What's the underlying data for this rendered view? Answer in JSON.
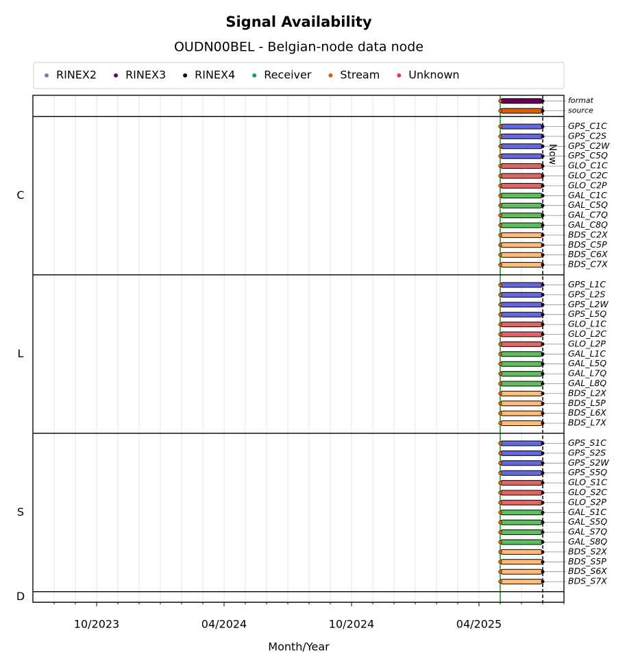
{
  "chart_data": {
    "type": "timeline",
    "title": "Signal Availability",
    "subtitle": "OUDN00BEL - Belgian-node data node",
    "xlabel": "Month/Year",
    "legend": [
      {
        "name": "RINEX2",
        "color": "#7777bb"
      },
      {
        "name": "RINEX3",
        "color": "#660066"
      },
      {
        "name": "RINEX4",
        "color": "#1a0010"
      },
      {
        "name": "Receiver",
        "color": "#1b9e77"
      },
      {
        "name": "Stream",
        "color": "#d95f02"
      },
      {
        "name": "Unknown",
        "color": "#e7298a"
      }
    ],
    "xlim": [
      "2023-07",
      "2025-08"
    ],
    "xticks": [
      {
        "value": "2023-10",
        "label": "10/2023"
      },
      {
        "value": "2024-04",
        "label": "04/2024"
      },
      {
        "value": "2024-10",
        "label": "10/2024"
      },
      {
        "value": "2025-04",
        "label": "04/2025"
      }
    ],
    "xminorticks": [
      "2023-08",
      "2023-09",
      "2023-11",
      "2023-12",
      "2024-01",
      "2024-02",
      "2024-03",
      "2024-05",
      "2024-06",
      "2024-07",
      "2024-08",
      "2024-09",
      "2024-11",
      "2024-12",
      "2025-01",
      "2025-02",
      "2025-03",
      "2025-05",
      "2025-06",
      "2025-07",
      "2025-08"
    ],
    "grid": true,
    "first_data": {
      "x": "2025-05",
      "color": "#228b22"
    },
    "now": {
      "x": "2025-07",
      "label": "Now"
    },
    "groups": [
      {
        "name": null,
        "rows": [
          {
            "name": "format",
            "color": "#660055",
            "start": "2025-05",
            "end": "2025-07"
          },
          {
            "name": "source",
            "color": "#d95f02",
            "start": "2025-05",
            "end": "2025-07"
          }
        ]
      },
      {
        "name": "C",
        "rows": [
          {
            "name": "GPS_C1C",
            "color": "#6666dd",
            "start": "2025-05",
            "end": "2025-07"
          },
          {
            "name": "GPS_C2S",
            "color": "#6666dd",
            "start": "2025-05",
            "end": "2025-07"
          },
          {
            "name": "GPS_C2W",
            "color": "#6666dd",
            "start": "2025-05",
            "end": "2025-07"
          },
          {
            "name": "GPS_C5Q",
            "color": "#6666dd",
            "start": "2025-05",
            "end": "2025-07"
          },
          {
            "name": "GLO_C1C",
            "color": "#e06666",
            "start": "2025-05",
            "end": "2025-07"
          },
          {
            "name": "GLO_C2C",
            "color": "#e06666",
            "start": "2025-05",
            "end": "2025-07"
          },
          {
            "name": "GLO_C2P",
            "color": "#e06666",
            "start": "2025-05",
            "end": "2025-07"
          },
          {
            "name": "GAL_C1C",
            "color": "#5cbf5c",
            "start": "2025-05",
            "end": "2025-07"
          },
          {
            "name": "GAL_C5Q",
            "color": "#5cbf5c",
            "start": "2025-05",
            "end": "2025-07"
          },
          {
            "name": "GAL_C7Q",
            "color": "#5cbf5c",
            "start": "2025-05",
            "end": "2025-07"
          },
          {
            "name": "GAL_C8Q",
            "color": "#5cbf5c",
            "start": "2025-05",
            "end": "2025-07"
          },
          {
            "name": "BDS_C2X",
            "color": "#ffbb77",
            "start": "2025-05",
            "end": "2025-07"
          },
          {
            "name": "BDS_C5P",
            "color": "#ffbb77",
            "start": "2025-05",
            "end": "2025-07"
          },
          {
            "name": "BDS_C6X",
            "color": "#ffbb77",
            "start": "2025-05",
            "end": "2025-07"
          },
          {
            "name": "BDS_C7X",
            "color": "#ffbb77",
            "start": "2025-05",
            "end": "2025-07"
          }
        ]
      },
      {
        "name": "L",
        "rows": [
          {
            "name": "GPS_L1C",
            "color": "#6666dd",
            "start": "2025-05",
            "end": "2025-07"
          },
          {
            "name": "GPS_L2S",
            "color": "#6666dd",
            "start": "2025-05",
            "end": "2025-07"
          },
          {
            "name": "GPS_L2W",
            "color": "#6666dd",
            "start": "2025-05",
            "end": "2025-07"
          },
          {
            "name": "GPS_L5Q",
            "color": "#6666dd",
            "start": "2025-05",
            "end": "2025-07"
          },
          {
            "name": "GLO_L1C",
            "color": "#e06666",
            "start": "2025-05",
            "end": "2025-07"
          },
          {
            "name": "GLO_L2C",
            "color": "#e06666",
            "start": "2025-05",
            "end": "2025-07"
          },
          {
            "name": "GLO_L2P",
            "color": "#e06666",
            "start": "2025-05",
            "end": "2025-07"
          },
          {
            "name": "GAL_L1C",
            "color": "#5cbf5c",
            "start": "2025-05",
            "end": "2025-07"
          },
          {
            "name": "GAL_L5Q",
            "color": "#5cbf5c",
            "start": "2025-05",
            "end": "2025-07"
          },
          {
            "name": "GAL_L7Q",
            "color": "#5cbf5c",
            "start": "2025-05",
            "end": "2025-07"
          },
          {
            "name": "GAL_L8Q",
            "color": "#5cbf5c",
            "start": "2025-05",
            "end": "2025-07"
          },
          {
            "name": "BDS_L2X",
            "color": "#ffbb77",
            "start": "2025-05",
            "end": "2025-07"
          },
          {
            "name": "BDS_L5P",
            "color": "#ffbb77",
            "start": "2025-05",
            "end": "2025-07"
          },
          {
            "name": "BDS_L6X",
            "color": "#ffbb77",
            "start": "2025-05",
            "end": "2025-07"
          },
          {
            "name": "BDS_L7X",
            "color": "#ffbb77",
            "start": "2025-05",
            "end": "2025-07"
          }
        ]
      },
      {
        "name": "S",
        "rows": [
          {
            "name": "GPS_S1C",
            "color": "#6666dd",
            "start": "2025-05",
            "end": "2025-07"
          },
          {
            "name": "GPS_S2S",
            "color": "#6666dd",
            "start": "2025-05",
            "end": "2025-07"
          },
          {
            "name": "GPS_S2W",
            "color": "#6666dd",
            "start": "2025-05",
            "end": "2025-07"
          },
          {
            "name": "GPS_S5Q",
            "color": "#6666dd",
            "start": "2025-05",
            "end": "2025-07"
          },
          {
            "name": "GLO_S1C",
            "color": "#e06666",
            "start": "2025-05",
            "end": "2025-07"
          },
          {
            "name": "GLO_S2C",
            "color": "#e06666",
            "start": "2025-05",
            "end": "2025-07"
          },
          {
            "name": "GLO_S2P",
            "color": "#e06666",
            "start": "2025-05",
            "end": "2025-07"
          },
          {
            "name": "GAL_S1C",
            "color": "#5cbf5c",
            "start": "2025-05",
            "end": "2025-07"
          },
          {
            "name": "GAL_S5Q",
            "color": "#5cbf5c",
            "start": "2025-05",
            "end": "2025-07"
          },
          {
            "name": "GAL_S7Q",
            "color": "#5cbf5c",
            "start": "2025-05",
            "end": "2025-07"
          },
          {
            "name": "GAL_S8Q",
            "color": "#5cbf5c",
            "start": "2025-05",
            "end": "2025-07"
          },
          {
            "name": "BDS_S2X",
            "color": "#ffbb77",
            "start": "2025-05",
            "end": "2025-07"
          },
          {
            "name": "BDS_S5P",
            "color": "#ffbb77",
            "start": "2025-05",
            "end": "2025-07"
          },
          {
            "name": "BDS_S6X",
            "color": "#ffbb77",
            "start": "2025-05",
            "end": "2025-07"
          },
          {
            "name": "BDS_S7X",
            "color": "#ffbb77",
            "start": "2025-05",
            "end": "2025-07"
          }
        ]
      },
      {
        "name": "D",
        "rows": []
      }
    ]
  }
}
